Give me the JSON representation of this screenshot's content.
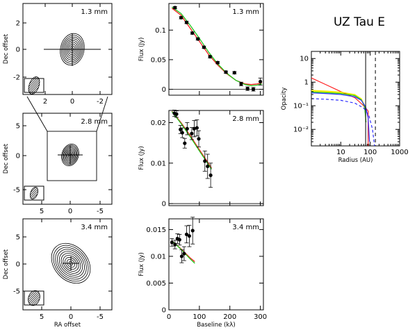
{
  "figure_title": "UZ Tau E",
  "colors": {
    "red": "#ff2020",
    "green": "#1ec81e",
    "blue": "#2f2fff",
    "yellow": "#f0f000",
    "ink": "#000000"
  },
  "maps": [
    {
      "label": "1.3 mm",
      "xlabel": "",
      "ylabel": "Dec offset",
      "xticks": [
        "2",
        "0",
        "-2"
      ],
      "yticks": [
        "2",
        "0",
        "-2"
      ]
    },
    {
      "label": "2.8 mm",
      "xlabel": "",
      "ylabel": "Dec offset",
      "xticks": [
        "5",
        "0",
        "-5"
      ],
      "yticks": [
        "5",
        "0",
        "-5"
      ]
    },
    {
      "label": "3.4 mm",
      "xlabel": "RA offset",
      "ylabel": "Dec offset",
      "xticks": [
        "5",
        "0",
        "-5"
      ],
      "yticks": [
        "5",
        "0",
        "-5"
      ]
    }
  ],
  "chart_data": [
    {
      "type": "scatter",
      "label": "1.3 mm",
      "xlabel": "",
      "ylabel": "Flux (Jy)",
      "xlim": [
        0,
        310
      ],
      "ylim": [
        -0.01,
        0.145
      ],
      "yticks": [
        0,
        0.05,
        0.1
      ],
      "ytick_labels": [
        "0",
        "0.05",
        "0.1"
      ],
      "points": [
        {
          "x": 20,
          "y": 0.138,
          "err": 0.002
        },
        {
          "x": 40,
          "y": 0.121,
          "err": 0.002
        },
        {
          "x": 58,
          "y": 0.113,
          "err": 0.002
        },
        {
          "x": 77,
          "y": 0.095,
          "err": 0.002
        },
        {
          "x": 95,
          "y": 0.085,
          "err": 0.002
        },
        {
          "x": 115,
          "y": 0.071,
          "err": 0.002
        },
        {
          "x": 135,
          "y": 0.055,
          "err": 0.002
        },
        {
          "x": 160,
          "y": 0.045,
          "err": 0.002
        },
        {
          "x": 187,
          "y": 0.029,
          "err": 0.002
        },
        {
          "x": 215,
          "y": 0.028,
          "err": 0.002
        },
        {
          "x": 237,
          "y": 0.009,
          "err": 0.003
        },
        {
          "x": 258,
          "y": 0.001,
          "err": 0.003
        },
        {
          "x": 277,
          "y": 0.0,
          "err": 0.003
        },
        {
          "x": 300,
          "y": 0.013,
          "err": 0.006
        }
      ],
      "series": [
        {
          "color": "red",
          "x": [
            10,
            40,
            70,
            100,
            130,
            160,
            190,
            220,
            250,
            270,
            290,
            305
          ],
          "y": [
            0.137,
            0.125,
            0.103,
            0.081,
            0.059,
            0.041,
            0.026,
            0.015,
            0.009,
            0.008,
            0.009,
            0.011
          ]
        },
        {
          "color": "green",
          "x": [
            10,
            40,
            70,
            100,
            130,
            160,
            190,
            220,
            250,
            270,
            290,
            305
          ],
          "y": [
            0.139,
            0.128,
            0.108,
            0.086,
            0.063,
            0.043,
            0.027,
            0.015,
            0.008,
            0.006,
            0.007,
            0.009
          ]
        }
      ]
    },
    {
      "type": "scatter",
      "label": "2.8 mm",
      "xlabel": "",
      "ylabel": "Flux (Jy)",
      "xlim": [
        0,
        310
      ],
      "ylim": [
        -0.0005,
        0.023
      ],
      "yticks": [
        0,
        0.01,
        0.02
      ],
      "ytick_labels": [
        "0",
        "0.01",
        "0.02"
      ],
      "points": [
        {
          "x": 18,
          "y": 0.0223,
          "err": 0.0008
        },
        {
          "x": 25,
          "y": 0.0221,
          "err": 0.0008
        },
        {
          "x": 38,
          "y": 0.0183,
          "err": 0.001
        },
        {
          "x": 44,
          "y": 0.0175,
          "err": 0.0012
        },
        {
          "x": 52,
          "y": 0.0149,
          "err": 0.0012
        },
        {
          "x": 60,
          "y": 0.0185,
          "err": 0.0015
        },
        {
          "x": 75,
          "y": 0.0173,
          "err": 0.0015
        },
        {
          "x": 83,
          "y": 0.0185,
          "err": 0.002
        },
        {
          "x": 92,
          "y": 0.0187,
          "err": 0.002
        },
        {
          "x": 98,
          "y": 0.016,
          "err": 0.002
        },
        {
          "x": 118,
          "y": 0.0105,
          "err": 0.0025
        },
        {
          "x": 127,
          "y": 0.0092,
          "err": 0.003
        },
        {
          "x": 137,
          "y": 0.007,
          "err": 0.003
        }
      ],
      "series": [
        {
          "color": "red",
          "x": [
            10,
            40,
            70,
            100,
            140
          ],
          "y": [
            0.0228,
            0.02,
            0.0168,
            0.0133,
            0.0088
          ]
        },
        {
          "color": "green",
          "x": [
            10,
            40,
            70,
            100,
            140
          ],
          "y": [
            0.0227,
            0.0198,
            0.0165,
            0.013,
            0.0085
          ]
        }
      ]
    },
    {
      "type": "scatter",
      "label": "3.4 mm",
      "xlabel": "Baseline (kλ)",
      "ylabel": "Flux (Jy)",
      "xlim": [
        0,
        310
      ],
      "ylim": [
        0.0,
        0.017
      ],
      "yticks": [
        0,
        0.005,
        0.01,
        0.015
      ],
      "ytick_labels": [
        "0",
        "0.005",
        "0.01",
        "0.015"
      ],
      "xticks": [
        0,
        100,
        200,
        300
      ],
      "xtick_labels": [
        "0",
        "100",
        "200",
        "300"
      ],
      "points": [
        {
          "x": 10,
          "y": 0.0126,
          "err": 0.0007
        },
        {
          "x": 20,
          "y": 0.0122,
          "err": 0.0008
        },
        {
          "x": 28,
          "y": 0.0133,
          "err": 0.0009
        },
        {
          "x": 35,
          "y": 0.0131,
          "err": 0.001
        },
        {
          "x": 42,
          "y": 0.01,
          "err": 0.0012
        },
        {
          "x": 50,
          "y": 0.0105,
          "err": 0.0013
        },
        {
          "x": 58,
          "y": 0.0141,
          "err": 0.0016
        },
        {
          "x": 67,
          "y": 0.0138,
          "err": 0.002
        },
        {
          "x": 78,
          "y": 0.0148,
          "err": 0.0025
        }
      ],
      "series": [
        {
          "color": "red",
          "x": [
            10,
            40,
            70,
            85
          ],
          "y": [
            0.0129,
            0.0114,
            0.0097,
            0.009
          ]
        },
        {
          "color": "green",
          "x": [
            10,
            40,
            70,
            85
          ],
          "y": [
            0.0129,
            0.0113,
            0.0095,
            0.0087
          ]
        }
      ]
    },
    {
      "type": "line",
      "xlabel": "Radius (AU)",
      "ylabel": "Opacity",
      "xscale": "log",
      "yscale": "log",
      "xlim": [
        1,
        1000
      ],
      "ylim": [
        0.002,
        20
      ],
      "xticks": [
        10,
        100,
        1000
      ],
      "xtick_labels": [
        "10",
        "100",
        "1000"
      ],
      "yticks": [
        0.01,
        0.1,
        1,
        10
      ],
      "ytick_labels": [
        "10⁻²",
        "10⁻¹",
        "1",
        "10"
      ],
      "vlines": [
        {
          "x": 70,
          "style": "solid"
        },
        {
          "x": 150,
          "style": "dashed"
        }
      ],
      "series": [
        {
          "color": "red",
          "style": "solid",
          "x": [
            1,
            3,
            10,
            30,
            60,
            70,
            70,
            85,
            85
          ],
          "y": [
            1.5,
            0.8,
            0.4,
            0.22,
            0.1,
            0.07,
            0.08,
            0.06,
            0.0015
          ]
        },
        {
          "color": "yellow",
          "style": "solid",
          "x": [
            1,
            3,
            10,
            30,
            50,
            65,
            72
          ],
          "y": [
            0.45,
            0.42,
            0.38,
            0.3,
            0.2,
            0.1,
            0.02
          ]
        },
        {
          "color": "green",
          "style": "solid",
          "x": [
            1,
            3,
            10,
            30,
            50,
            65,
            72
          ],
          "y": [
            0.38,
            0.36,
            0.33,
            0.27,
            0.18,
            0.09,
            0.02
          ]
        },
        {
          "color": "blue",
          "style": "solid",
          "x": [
            1,
            3,
            10,
            30,
            50,
            70,
            85,
            95
          ],
          "y": [
            0.35,
            0.33,
            0.3,
            0.24,
            0.17,
            0.09,
            0.03,
            0.003
          ]
        },
        {
          "color": "blue",
          "style": "dashed",
          "x": [
            1,
            3,
            10,
            30,
            60,
            90,
            120,
            140
          ],
          "y": [
            0.2,
            0.19,
            0.17,
            0.13,
            0.08,
            0.04,
            0.01,
            0.002
          ]
        }
      ]
    }
  ]
}
